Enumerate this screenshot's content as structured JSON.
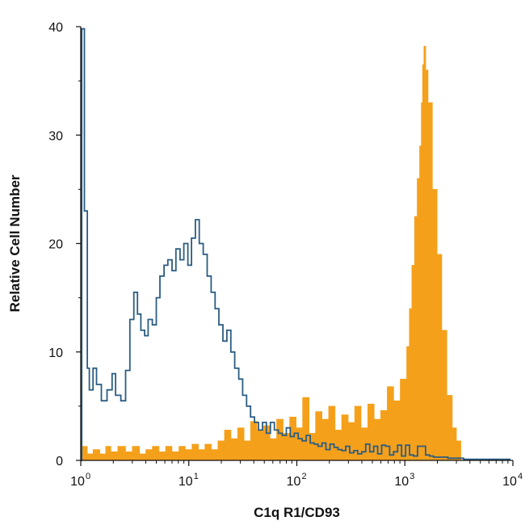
{
  "chart_data": {
    "type": "area",
    "xlabel": "C1q R1/CD93",
    "ylabel": "Relative Cell Number",
    "x_scale": "log",
    "xlim": [
      1,
      10000
    ],
    "ylim": [
      0,
      40
    ],
    "x_ticks": [
      {
        "value": 1,
        "base": "10",
        "exp": "0"
      },
      {
        "value": 10,
        "base": "10",
        "exp": "1"
      },
      {
        "value": 100,
        "base": "10",
        "exp": "2"
      },
      {
        "value": 1000,
        "base": "10",
        "exp": "3"
      },
      {
        "value": 10000,
        "base": "10",
        "exp": "4"
      }
    ],
    "y_ticks": [
      0,
      10,
      20,
      30,
      40
    ],
    "grid": false,
    "legend": "none",
    "series": [
      {
        "color": "#F5A01A",
        "style": "filled-histogram",
        "points": [
          [
            1.04,
            1.3
          ],
          [
            1.15,
            0.6
          ],
          [
            1.3,
            1.0
          ],
          [
            1.5,
            0.6
          ],
          [
            1.7,
            1.3
          ],
          [
            1.9,
            0.8
          ],
          [
            2.2,
            1.3
          ],
          [
            2.6,
            0.8
          ],
          [
            3.0,
            1.3
          ],
          [
            3.5,
            0.6
          ],
          [
            4.0,
            1.0
          ],
          [
            4.6,
            1.3
          ],
          [
            5.3,
            0.8
          ],
          [
            6.1,
            1.3
          ],
          [
            7.0,
            0.8
          ],
          [
            8.1,
            1.3
          ],
          [
            9.3,
            1.0
          ],
          [
            10.7,
            1.5
          ],
          [
            12.3,
            1.0
          ],
          [
            14.1,
            1.5
          ],
          [
            16.2,
            1.0
          ],
          [
            18.6,
            1.8
          ],
          [
            21.4,
            2.8
          ],
          [
            24.6,
            2.0
          ],
          [
            28.3,
            3.0
          ],
          [
            32.5,
            1.8
          ],
          [
            37.3,
            3.6
          ],
          [
            42.9,
            2.8
          ],
          [
            49.3,
            3.2
          ],
          [
            56.6,
            2.0
          ],
          [
            65.0,
            3.8
          ],
          [
            74.7,
            2.5
          ],
          [
            85.8,
            4.0
          ],
          [
            98.6,
            3.0
          ],
          [
            113,
            5.8
          ],
          [
            130,
            2.5
          ],
          [
            149,
            4.5
          ],
          [
            171,
            3.8
          ],
          [
            197,
            5.0
          ],
          [
            226,
            2.8
          ],
          [
            260,
            4.2
          ],
          [
            299,
            3.5
          ],
          [
            343,
            5.0
          ],
          [
            394,
            3.0
          ],
          [
            453,
            5.2
          ],
          [
            520,
            3.8
          ],
          [
            597,
            4.6
          ],
          [
            686,
            6.8
          ],
          [
            788,
            5.5
          ],
          [
            905,
            7.5
          ],
          [
            1040,
            10.5
          ],
          [
            1100,
            14.0
          ],
          [
            1160,
            18.0
          ],
          [
            1230,
            22.5
          ],
          [
            1300,
            26.0
          ],
          [
            1370,
            29.0
          ],
          [
            1420,
            33.0
          ],
          [
            1460,
            36.5
          ],
          [
            1500,
            38.2
          ],
          [
            1560,
            36.0
          ],
          [
            1640,
            33.0
          ],
          [
            1800,
            25.0
          ],
          [
            1990,
            19.0
          ],
          [
            2200,
            12.0
          ],
          [
            2450,
            6.0
          ],
          [
            2750,
            3.0
          ],
          [
            3000,
            1.8
          ],
          [
            3300,
            0
          ]
        ]
      },
      {
        "color": "#2B5C82",
        "style": "step-outline",
        "points": [
          [
            1.0,
            0
          ],
          [
            1.02,
            39.8
          ],
          [
            1.08,
            23.0
          ],
          [
            1.15,
            8.5
          ],
          [
            1.2,
            6.5
          ],
          [
            1.3,
            8.5
          ],
          [
            1.4,
            7.0
          ],
          [
            1.55,
            5.5
          ],
          [
            1.75,
            6.5
          ],
          [
            1.95,
            8.0
          ],
          [
            2.1,
            6.0
          ],
          [
            2.35,
            5.5
          ],
          [
            2.6,
            8.3
          ],
          [
            2.85,
            13.0
          ],
          [
            3.1,
            15.5
          ],
          [
            3.35,
            13.5
          ],
          [
            3.6,
            12.0
          ],
          [
            3.9,
            11.5
          ],
          [
            4.2,
            13.0
          ],
          [
            4.6,
            12.5
          ],
          [
            5.0,
            15.0
          ],
          [
            5.4,
            17.0
          ],
          [
            5.9,
            18.0
          ],
          [
            6.4,
            18.5
          ],
          [
            7.0,
            17.5
          ],
          [
            7.6,
            19.5
          ],
          [
            8.3,
            18.5
          ],
          [
            9.0,
            20.0
          ],
          [
            9.8,
            18.0
          ],
          [
            10.6,
            20.5
          ],
          [
            11.5,
            22.2
          ],
          [
            12.5,
            20.0
          ],
          [
            13.6,
            19.0
          ],
          [
            14.8,
            17.0
          ],
          [
            16.1,
            15.5
          ],
          [
            17.5,
            14.0
          ],
          [
            19.0,
            12.5
          ],
          [
            20.7,
            11.0
          ],
          [
            22.5,
            12.0
          ],
          [
            24.5,
            10.0
          ],
          [
            26.6,
            8.5
          ],
          [
            29.0,
            7.5
          ],
          [
            31.5,
            6.0
          ],
          [
            34.3,
            5.0
          ],
          [
            37.3,
            4.0
          ],
          [
            40.6,
            3.5
          ],
          [
            44.2,
            2.8
          ],
          [
            48.1,
            3.5
          ],
          [
            52.3,
            2.5
          ],
          [
            57.0,
            3.5
          ],
          [
            62.0,
            2.8
          ],
          [
            67.5,
            2.5
          ],
          [
            73.4,
            2.3
          ],
          [
            80.0,
            3.0
          ],
          [
            87.0,
            2.2
          ],
          [
            94.6,
            2.5
          ],
          [
            103,
            2.0
          ],
          [
            112,
            1.8
          ],
          [
            122,
            2.3
          ],
          [
            133,
            1.6
          ],
          [
            145,
            1.5
          ],
          [
            157,
            1.3
          ],
          [
            171,
            1.6
          ],
          [
            186,
            1.0
          ],
          [
            203,
            1.5
          ],
          [
            221,
            1.2
          ],
          [
            240,
            1.0
          ],
          [
            261,
            0.9
          ],
          [
            284,
            1.3
          ],
          [
            309,
            0.7
          ],
          [
            337,
            0.9
          ],
          [
            366,
            0.6
          ],
          [
            399,
            0.8
          ],
          [
            434,
            1.5
          ],
          [
            473,
            0.8
          ],
          [
            515,
            1.3
          ],
          [
            560,
            0.6
          ],
          [
            610,
            1.4
          ],
          [
            664,
            1.3
          ],
          [
            723,
            0.5
          ],
          [
            787,
            0.8
          ],
          [
            857,
            1.4
          ],
          [
            933,
            0.4
          ],
          [
            1016,
            1.4
          ],
          [
            1106,
            0.5
          ],
          [
            1204,
            0.4
          ],
          [
            1311,
            1.3
          ],
          [
            1427,
            1.3
          ],
          [
            1554,
            0.5
          ],
          [
            1692,
            0.4
          ],
          [
            1842,
            0.3
          ],
          [
            2006,
            0.3
          ],
          [
            2500,
            0.2
          ],
          [
            3500,
            0.1
          ],
          [
            6000,
            0.1
          ],
          [
            9500,
            0.1
          ]
        ]
      }
    ]
  }
}
